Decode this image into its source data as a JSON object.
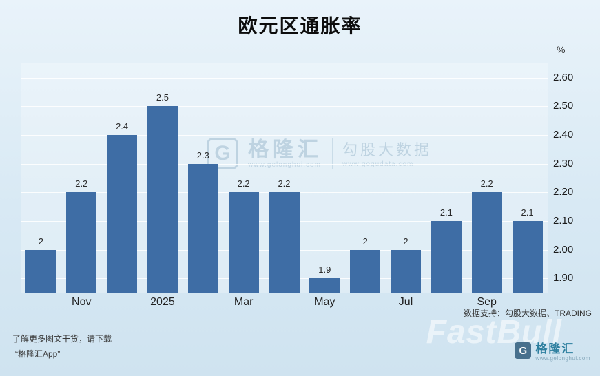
{
  "title": "欧元区通胀率",
  "chart_data": {
    "type": "bar",
    "title": "欧元区通胀率",
    "categories": [
      "",
      "Nov",
      "",
      "2025",
      "",
      "Mar",
      "",
      "May",
      "",
      "Jul",
      "",
      "Sep",
      ""
    ],
    "values": [
      2.0,
      2.2,
      2.4,
      2.5,
      2.3,
      2.2,
      2.2,
      1.9,
      2.0,
      2.0,
      2.1,
      2.2,
      2.1
    ],
    "labels": [
      "2",
      "2.2",
      "2.4",
      "2.5",
      "2.3",
      "2.2",
      "2.2",
      "1.9",
      "2",
      "2",
      "2.1",
      "2.2",
      "2.1"
    ],
    "x_tick_labels": [
      "Nov",
      "2025",
      "Mar",
      "May",
      "Jul",
      "Sep"
    ],
    "x_tick_slots": [
      1,
      3,
      5,
      7,
      9,
      11
    ],
    "y_ticks": [
      "2.60",
      "2.50",
      "2.40",
      "2.30",
      "2.20",
      "2.10",
      "2.00",
      "1.90"
    ],
    "ylim": [
      1.85,
      2.65
    ],
    "ylabel": "%",
    "grid": true,
    "legend": "none",
    "bar_color": "#3e6da5"
  },
  "colors": {
    "background_top": "#e9f3fa",
    "background_bottom": "#cfe3f0",
    "bar": "#3e6da5"
  },
  "watermark": {
    "icon_letter": "G",
    "brand": "格隆汇",
    "brand_url": "www.gelonghui.com",
    "secondary": "勾股大数据",
    "secondary_url": "www.gogudata.com"
  },
  "footer": {
    "data_support": "数据支持：勾股大数据、TRADING",
    "promo_line1": "了解更多图文干货，请下载",
    "promo_line2": "“格隆汇App”",
    "fastbull_watermark": "FastBull",
    "logo_icon_letter": "G",
    "logo_text": "格隆汇",
    "logo_url": "www.gelonghui.com"
  }
}
